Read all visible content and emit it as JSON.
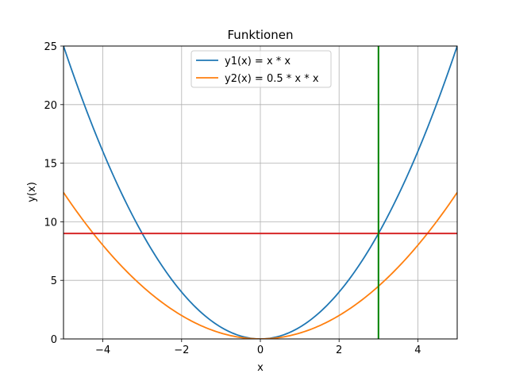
{
  "chart_data": {
    "type": "line",
    "title": "Funktionen",
    "xlabel": "x",
    "ylabel": "y(x)",
    "xlim": [
      -5,
      5
    ],
    "ylim": [
      0,
      25
    ],
    "xticks": [
      -4,
      -2,
      0,
      2,
      4
    ],
    "xtick_labels": [
      "−4",
      "−2",
      "0",
      "2",
      "4"
    ],
    "yticks": [
      0,
      5,
      10,
      15,
      20,
      25
    ],
    "ytick_labels": [
      "0",
      "5",
      "10",
      "15",
      "20",
      "25"
    ],
    "grid": true,
    "legend_position": "top-center",
    "series": [
      {
        "name": "y1(x) = x * x",
        "color": "#1f77b4",
        "function": "x*x",
        "x": [
          -5,
          -4,
          -3,
          -2,
          -1,
          0,
          1,
          2,
          3,
          4,
          5
        ],
        "y": [
          25,
          16,
          9,
          4,
          1,
          0,
          1,
          4,
          9,
          16,
          25
        ]
      },
      {
        "name": "y2(x) = 0.5 * x * x",
        "color": "#ff7f0e",
        "function": "0.5*x*x",
        "x": [
          -5,
          -4,
          -3,
          -2,
          -1,
          0,
          1,
          2,
          3,
          4,
          5
        ],
        "y": [
          12.5,
          8,
          4.5,
          2,
          0.5,
          0,
          0.5,
          2,
          4.5,
          8,
          12.5
        ]
      }
    ],
    "hlines": [
      {
        "y": 9,
        "color": "#d62728"
      }
    ],
    "vlines": [
      {
        "x": 3,
        "color": "#008000"
      }
    ]
  }
}
